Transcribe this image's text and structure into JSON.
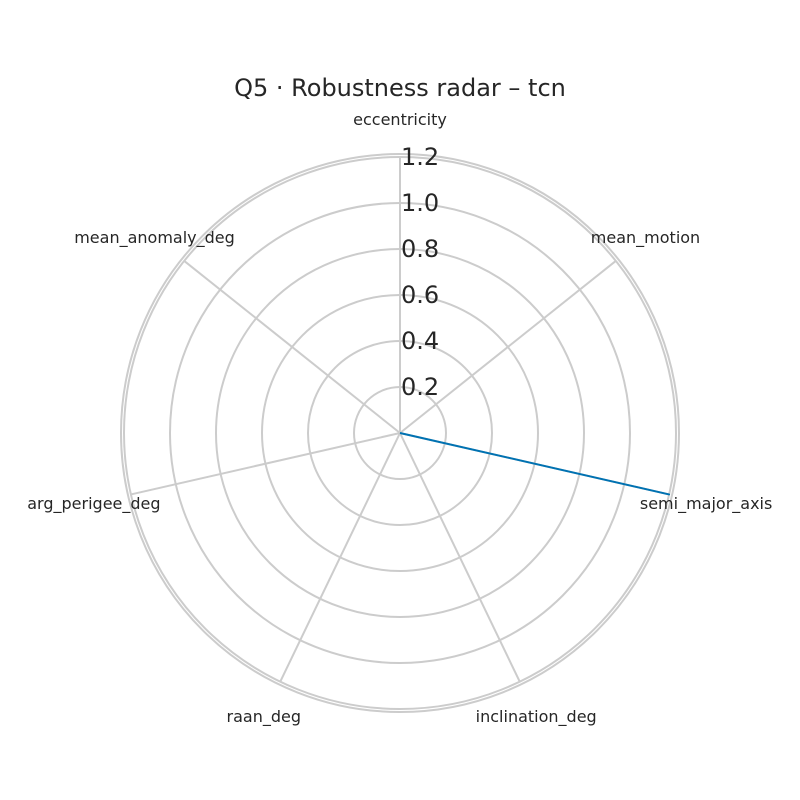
{
  "chart_data": {
    "type": "radar",
    "title": "Q5 · Robustness radar – tcn",
    "axes": [
      "eccentricity",
      "mean_motion",
      "semi_major_axis",
      "inclination_deg",
      "raan_deg",
      "arg_perigee_deg",
      "mean_anomaly_deg"
    ],
    "rticks": [
      "0.2",
      "0.4",
      "0.6",
      "0.8",
      "1.0",
      "1.2"
    ],
    "rtick_values": [
      0.2,
      0.4,
      0.6,
      0.8,
      1.0,
      1.2
    ],
    "rlim": [
      0,
      1.2
    ],
    "grid": true,
    "series": [
      {
        "values": [
          0,
          0,
          1.2,
          0,
          0,
          0,
          0
        ],
        "color": "#0072b2"
      }
    ],
    "colors": {
      "grid": "#cccccc",
      "frame": "#cccccc",
      "text": "#262626"
    }
  }
}
